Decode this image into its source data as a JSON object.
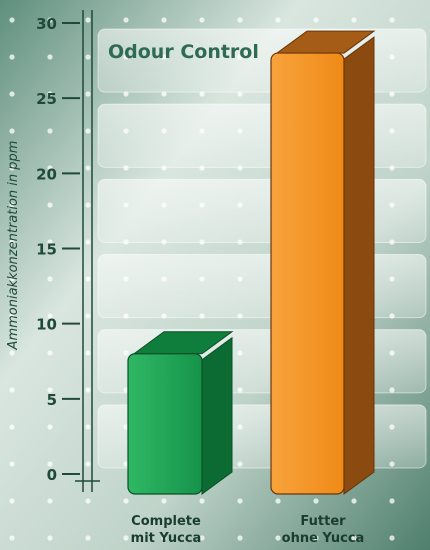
{
  "chart_data": {
    "type": "bar",
    "title": "Odour Control",
    "ylabel": "Ammoniakkonzentration in ppm",
    "ylim": [
      0,
      30
    ],
    "yticks": [
      "0",
      "5",
      "10",
      "15",
      "20",
      "25",
      "30"
    ],
    "categories": [
      [
        "Complete",
        "mit Yucca"
      ],
      [
        "Futter",
        "ohne Yucca"
      ]
    ],
    "values": [
      8,
      28
    ],
    "style": "3d",
    "colors": {
      "bar_1": "#1aa24f",
      "bar_2": "#f5911e",
      "title": "#2f6b52",
      "axis": "#1f4a3a"
    }
  }
}
